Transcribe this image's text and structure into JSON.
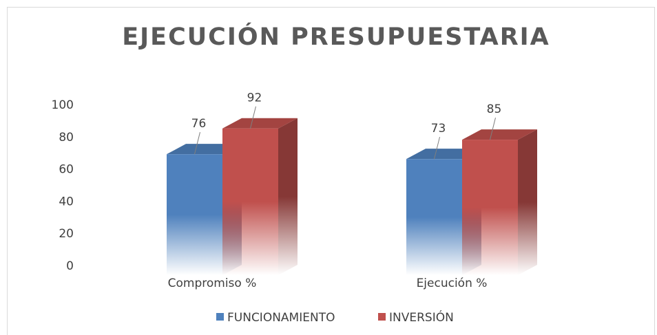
{
  "chart_data": {
    "type": "bar3d",
    "title": "EJECUCIÓN PRESUPUESTARIA",
    "categories": [
      "Compromiso %",
      "Ejecución %"
    ],
    "series": [
      {
        "name": "FUNCIONAMIENTO",
        "color": "#4f81bd",
        "values": [
          76,
          73
        ]
      },
      {
        "name": "INVERSIÓN",
        "color": "#c0504d",
        "values": [
          92,
          85
        ]
      }
    ],
    "ylim": [
      0,
      100
    ],
    "yticks": [
      0,
      20,
      40,
      60,
      80,
      100
    ],
    "grid": false,
    "legend": "bottom"
  }
}
